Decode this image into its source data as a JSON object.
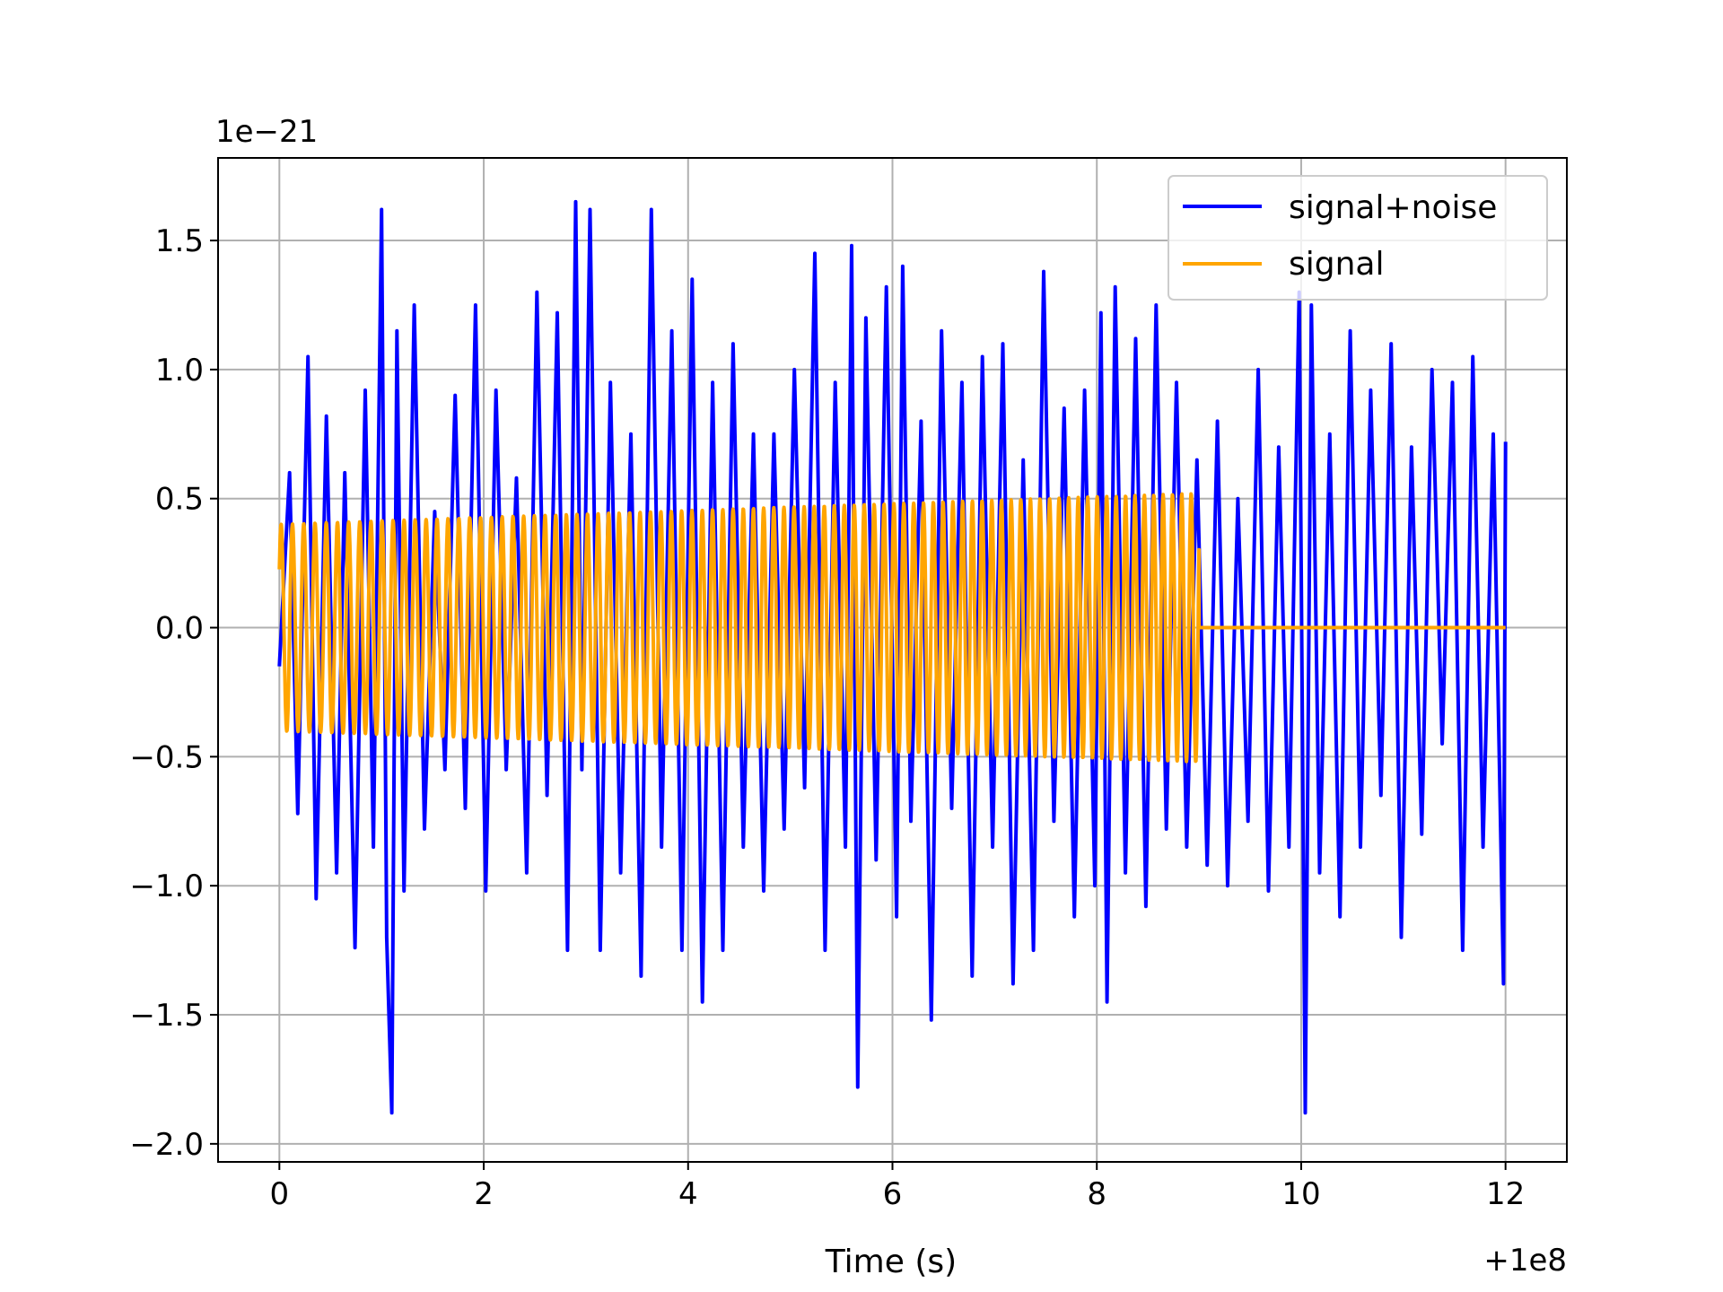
{
  "chart_data": {
    "type": "line",
    "xlabel": "Time (s)",
    "ylabel": "",
    "x_offset_label": "+1e8",
    "y_scale_label": "1e−21",
    "xlim": [
      -0.6,
      12.6
    ],
    "ylim": [
      -2.07,
      1.82
    ],
    "xticks": [
      0,
      2,
      4,
      6,
      8,
      10,
      12
    ],
    "xtick_labels": [
      "0",
      "2",
      "4",
      "6",
      "8",
      "10",
      "12"
    ],
    "yticks": [
      -2.0,
      -1.5,
      -1.0,
      -0.5,
      0.0,
      0.5,
      1.0,
      1.5
    ],
    "ytick_labels": [
      "−2.0",
      "−1.5",
      "−1.0",
      "−0.5",
      "0.0",
      "0.5",
      "1.0",
      "1.5"
    ],
    "grid": true,
    "legend_position": "top-right",
    "series": [
      {
        "name": "signal+noise",
        "color": "#0000ff",
        "x": [
          0.0,
          0.1,
          0.18,
          0.28,
          0.36,
          0.46,
          0.56,
          0.64,
          0.74,
          0.84,
          0.92,
          1.0,
          1.05,
          1.1,
          1.15,
          1.22,
          1.32,
          1.42,
          1.52,
          1.62,
          1.72,
          1.82,
          1.92,
          2.02,
          2.12,
          2.22,
          2.32,
          2.42,
          2.52,
          2.62,
          2.72,
          2.82,
          2.9,
          2.96,
          3.04,
          3.14,
          3.24,
          3.34,
          3.44,
          3.54,
          3.64,
          3.74,
          3.84,
          3.94,
          4.04,
          4.14,
          4.24,
          4.34,
          4.44,
          4.54,
          4.64,
          4.74,
          4.84,
          4.94,
          5.04,
          5.14,
          5.24,
          5.34,
          5.44,
          5.54,
          5.6,
          5.66,
          5.74,
          5.84,
          5.94,
          6.04,
          6.1,
          6.18,
          6.28,
          6.38,
          6.48,
          6.58,
          6.68,
          6.78,
          6.88,
          6.98,
          7.08,
          7.18,
          7.28,
          7.38,
          7.48,
          7.58,
          7.68,
          7.78,
          7.88,
          7.98,
          8.04,
          8.1,
          8.18,
          8.28,
          8.38,
          8.48,
          8.58,
          8.68,
          8.78,
          8.88,
          8.98,
          9.08,
          9.18,
          9.28,
          9.38,
          9.48,
          9.58,
          9.68,
          9.78,
          9.88,
          9.98,
          10.04,
          10.1,
          10.18,
          10.28,
          10.38,
          10.48,
          10.58,
          10.68,
          10.78,
          10.88,
          10.98,
          11.08,
          11.18,
          11.28,
          11.38,
          11.48,
          11.58,
          11.68,
          11.78,
          11.88,
          11.98,
          12.0
        ],
        "y": [
          -0.15,
          0.6,
          -0.72,
          1.05,
          -1.05,
          0.82,
          -0.95,
          0.6,
          -1.24,
          0.92,
          -0.85,
          1.62,
          -1.2,
          -1.88,
          1.15,
          -1.02,
          1.25,
          -0.78,
          0.45,
          -0.55,
          0.9,
          -0.7,
          1.25,
          -1.02,
          0.92,
          -0.55,
          0.58,
          -0.95,
          1.3,
          -0.65,
          1.22,
          -1.25,
          1.65,
          -0.55,
          1.62,
          -1.25,
          0.95,
          -0.95,
          0.75,
          -1.35,
          1.62,
          -0.85,
          1.15,
          -1.25,
          1.35,
          -1.45,
          0.95,
          -1.25,
          1.1,
          -0.85,
          0.75,
          -1.02,
          0.75,
          -0.78,
          1.0,
          -0.62,
          1.45,
          -1.25,
          0.95,
          -0.85,
          1.48,
          -1.78,
          1.2,
          -0.9,
          1.32,
          -1.12,
          1.4,
          -0.75,
          0.8,
          -1.52,
          1.15,
          -0.7,
          0.95,
          -1.35,
          1.05,
          -0.85,
          1.1,
          -1.38,
          0.65,
          -1.25,
          1.38,
          -0.75,
          0.85,
          -1.12,
          0.92,
          -1.0,
          1.22,
          -1.45,
          1.32,
          -0.95,
          1.12,
          -1.08,
          1.25,
          -0.78,
          0.95,
          -0.85,
          0.65,
          -0.92,
          0.8,
          -1.0,
          0.5,
          -0.75,
          1.0,
          -1.02,
          0.7,
          -0.85,
          1.3,
          -1.88,
          1.25,
          -0.95,
          0.75,
          -1.12,
          1.15,
          -0.85,
          0.92,
          -0.65,
          1.1,
          -1.2,
          0.7,
          -0.8,
          1.0,
          -0.45,
          0.95,
          -1.25,
          1.05,
          -0.85,
          0.75,
          -1.38,
          0.72
        ]
      },
      {
        "name": "signal",
        "color": "#ffa500",
        "x": [
          0.0,
          9.0,
          12.0
        ],
        "y": [
          0.0,
          0.0,
          0.0
        ],
        "amplitude_start": 0.4,
        "amplitude_end": 0.52,
        "active_until": 9.0,
        "oscillation_frequency_start": 9,
        "oscillation_frequency_end": 11
      }
    ]
  }
}
